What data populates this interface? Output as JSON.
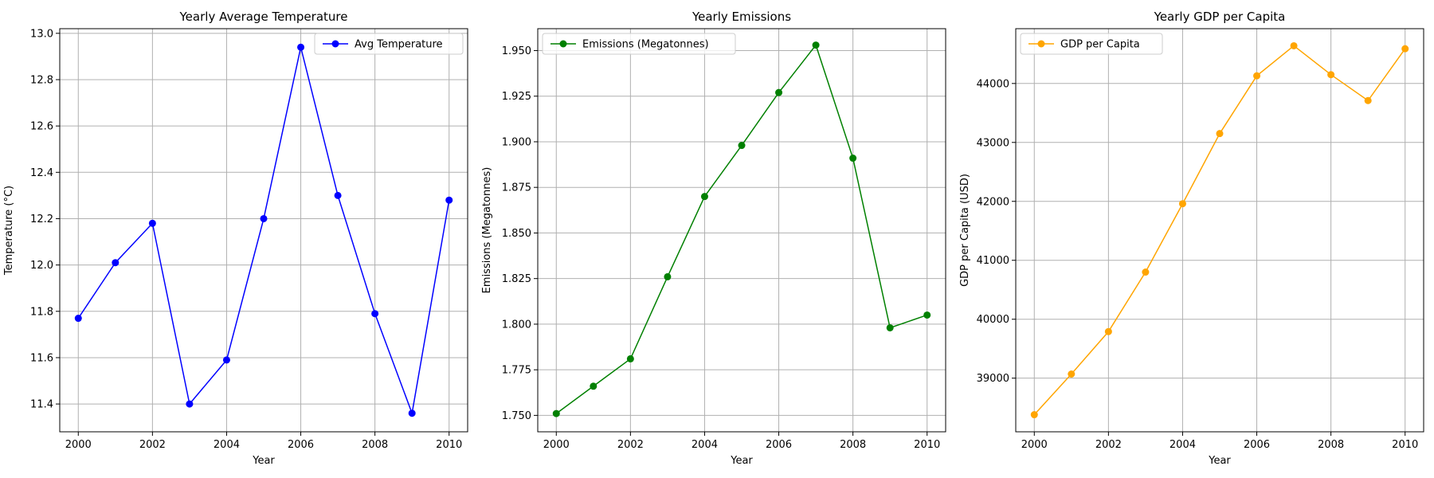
{
  "chart_data": [
    {
      "type": "line",
      "title": "Yearly Average Temperature",
      "xlabel": "Year",
      "ylabel": "Temperature (°C)",
      "x": [
        2000,
        2001,
        2002,
        2003,
        2004,
        2005,
        2006,
        2007,
        2008,
        2009,
        2010
      ],
      "xlim": [
        1999.5,
        2010.5
      ],
      "xticks": [
        2000,
        2002,
        2004,
        2006,
        2008,
        2010
      ],
      "ylim": [
        11.28,
        13.02
      ],
      "yticks": [
        11.4,
        11.6,
        11.8,
        12.0,
        12.2,
        12.4,
        12.6,
        12.8,
        13.0
      ],
      "ytick_labels": [
        "11.4",
        "11.6",
        "11.8",
        "12.0",
        "12.2",
        "12.4",
        "12.6",
        "12.8",
        "13.0"
      ],
      "grid": true,
      "legend_position": "top-right",
      "series": [
        {
          "name": "Avg Temperature",
          "color": "#0000ff",
          "marker": "circle",
          "values": [
            11.77,
            12.01,
            12.18,
            11.4,
            11.59,
            12.2,
            12.94,
            12.3,
            11.79,
            11.36,
            12.28
          ]
        }
      ]
    },
    {
      "type": "line",
      "title": "Yearly Emissions",
      "xlabel": "Year",
      "ylabel": "Emissions (Megatonnes)",
      "x": [
        2000,
        2001,
        2002,
        2003,
        2004,
        2005,
        2006,
        2007,
        2008,
        2009,
        2010
      ],
      "xlim": [
        1999.5,
        2010.5
      ],
      "xticks": [
        2000,
        2002,
        2004,
        2006,
        2008,
        2010
      ],
      "ylim": [
        1.741,
        1.962
      ],
      "yticks": [
        1.75,
        1.775,
        1.8,
        1.825,
        1.85,
        1.875,
        1.9,
        1.925,
        1.95
      ],
      "ytick_labels": [
        "1.750",
        "1.775",
        "1.800",
        "1.825",
        "1.850",
        "1.875",
        "1.900",
        "1.925",
        "1.950"
      ],
      "grid": true,
      "legend_position": "top-left",
      "series": [
        {
          "name": "Emissions (Megatonnes)",
          "color": "#008000",
          "marker": "circle",
          "values": [
            1.751,
            1.766,
            1.781,
            1.826,
            1.87,
            1.898,
            1.927,
            1.953,
            1.891,
            1.798,
            1.805
          ]
        }
      ]
    },
    {
      "type": "line",
      "title": "Yearly GDP per Capita",
      "xlabel": "Year",
      "ylabel": "GDP per Capita (USD)",
      "x": [
        2000,
        2001,
        2002,
        2003,
        2004,
        2005,
        2006,
        2007,
        2008,
        2009,
        2010
      ],
      "xlim": [
        1999.5,
        2010.5
      ],
      "xticks": [
        2000,
        2002,
        2004,
        2006,
        2008,
        2010
      ],
      "ylim": [
        38090,
        44930
      ],
      "yticks": [
        39000,
        40000,
        41000,
        42000,
        43000,
        44000
      ],
      "ytick_labels": [
        "39000",
        "40000",
        "41000",
        "42000",
        "43000",
        "44000"
      ],
      "grid": true,
      "legend_position": "top-left",
      "series": [
        {
          "name": "GDP per Capita",
          "color": "#ffa500",
          "marker": "circle",
          "values": [
            38380,
            39070,
            39790,
            40800,
            41960,
            43150,
            44130,
            44640,
            44150,
            43710,
            44590
          ]
        }
      ]
    }
  ]
}
